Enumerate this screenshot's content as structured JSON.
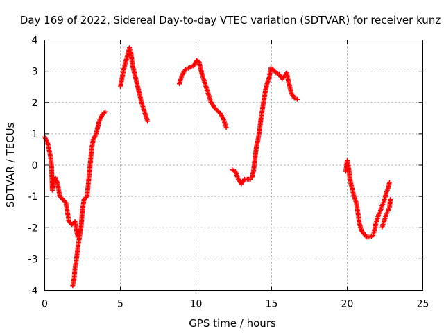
{
  "chart_data": {
    "type": "scatter",
    "title": "Day 169 of 2022, Sidereal Day-to-day VTEC variation (SDTVAR) for receiver kunz",
    "xlabel": "GPS time / hours",
    "ylabel": "SDTVAR / TECUs",
    "xlim": [
      0,
      25
    ],
    "ylim": [
      -4,
      4
    ],
    "xticks": [
      0,
      5,
      10,
      15,
      20,
      25
    ],
    "yticks": [
      -4,
      -3,
      -2,
      -1,
      0,
      1,
      2,
      3,
      4
    ],
    "grid": true,
    "marker": "+",
    "color": "#ff0000",
    "segments": [
      {
        "points": [
          [
            0.0,
            0.9
          ],
          [
            0.2,
            0.7
          ],
          [
            0.35,
            0.35
          ],
          [
            0.45,
            0.0
          ],
          [
            0.5,
            -0.8
          ],
          [
            0.6,
            -0.5
          ],
          [
            0.7,
            -0.4
          ],
          [
            0.85,
            -0.6
          ],
          [
            1.0,
            -1.0
          ],
          [
            1.2,
            -1.1
          ],
          [
            1.4,
            -1.2
          ],
          [
            1.5,
            -1.5
          ],
          [
            1.6,
            -1.8
          ],
          [
            1.8,
            -1.9
          ],
          [
            2.0,
            -1.8
          ],
          [
            2.1,
            -2.1
          ],
          [
            2.2,
            -2.3
          ],
          [
            2.4,
            -2.0
          ],
          [
            2.5,
            -1.4
          ],
          [
            2.6,
            -1.1
          ],
          [
            2.8,
            -1.0
          ],
          [
            2.9,
            -0.5
          ],
          [
            3.0,
            0.0
          ],
          [
            3.1,
            0.5
          ],
          [
            3.2,
            0.8
          ],
          [
            3.4,
            1.0
          ],
          [
            3.6,
            1.4
          ],
          [
            3.8,
            1.6
          ],
          [
            4.0,
            1.7
          ]
        ]
      },
      {
        "points": [
          [
            1.85,
            -3.85
          ],
          [
            1.95,
            -3.6
          ],
          [
            2.0,
            -3.3
          ],
          [
            2.1,
            -3.0
          ],
          [
            2.2,
            -2.6
          ],
          [
            2.3,
            -2.3
          ],
          [
            2.4,
            -2.0
          ]
        ]
      },
      {
        "points": [
          [
            5.0,
            2.5
          ],
          [
            5.2,
            3.0
          ],
          [
            5.35,
            3.3
          ],
          [
            5.5,
            3.55
          ],
          [
            5.6,
            3.75
          ],
          [
            5.7,
            3.6
          ],
          [
            5.8,
            3.2
          ],
          [
            6.0,
            2.8
          ],
          [
            6.2,
            2.4
          ],
          [
            6.4,
            2.0
          ],
          [
            6.6,
            1.7
          ],
          [
            6.8,
            1.4
          ]
        ]
      },
      {
        "points": [
          [
            8.9,
            2.6
          ],
          [
            9.1,
            2.9
          ],
          [
            9.3,
            3.05
          ],
          [
            9.5,
            3.1
          ],
          [
            9.7,
            3.15
          ],
          [
            9.9,
            3.2
          ],
          [
            10.05,
            3.35
          ],
          [
            10.2,
            3.3
          ],
          [
            10.4,
            2.9
          ],
          [
            10.6,
            2.6
          ],
          [
            10.8,
            2.3
          ],
          [
            11.0,
            2.0
          ],
          [
            11.2,
            1.85
          ],
          [
            11.4,
            1.75
          ],
          [
            11.6,
            1.65
          ],
          [
            11.8,
            1.5
          ],
          [
            12.0,
            1.2
          ]
        ]
      },
      {
        "points": [
          [
            12.4,
            -0.15
          ],
          [
            12.6,
            -0.2
          ],
          [
            12.8,
            -0.45
          ],
          [
            13.0,
            -0.6
          ],
          [
            13.2,
            -0.45
          ],
          [
            13.4,
            -0.45
          ],
          [
            13.6,
            -0.45
          ],
          [
            13.7,
            -0.4
          ],
          [
            13.8,
            -0.2
          ],
          [
            13.9,
            0.2
          ],
          [
            14.0,
            0.6
          ],
          [
            14.1,
            0.8
          ],
          [
            14.2,
            1.1
          ],
          [
            14.3,
            1.5
          ],
          [
            14.4,
            1.8
          ],
          [
            14.5,
            2.1
          ],
          [
            14.6,
            2.4
          ],
          [
            14.7,
            2.6
          ],
          [
            14.85,
            2.8
          ],
          [
            14.95,
            3.1
          ],
          [
            15.1,
            3.05
          ],
          [
            15.3,
            2.95
          ],
          [
            15.5,
            2.9
          ],
          [
            15.7,
            2.75
          ],
          [
            15.8,
            2.8
          ],
          [
            16.0,
            2.95
          ],
          [
            16.1,
            2.7
          ],
          [
            16.2,
            2.5
          ],
          [
            16.3,
            2.3
          ],
          [
            16.5,
            2.15
          ],
          [
            16.7,
            2.1
          ]
        ]
      },
      {
        "points": [
          [
            19.9,
            -0.2
          ],
          [
            20.0,
            0.15
          ],
          [
            20.1,
            -0.1
          ],
          [
            20.2,
            -0.5
          ],
          [
            20.3,
            -0.7
          ],
          [
            20.45,
            -1.0
          ],
          [
            20.6,
            -1.2
          ],
          [
            20.7,
            -1.5
          ],
          [
            20.8,
            -1.85
          ],
          [
            20.95,
            -2.1
          ],
          [
            21.1,
            -2.2
          ],
          [
            21.3,
            -2.3
          ],
          [
            21.5,
            -2.3
          ],
          [
            21.7,
            -2.25
          ],
          [
            21.8,
            -2.1
          ],
          [
            21.9,
            -1.85
          ],
          [
            22.0,
            -1.7
          ],
          [
            22.1,
            -1.55
          ],
          [
            22.2,
            -1.45
          ],
          [
            22.3,
            -1.3
          ],
          [
            22.4,
            -1.2
          ],
          [
            22.5,
            -1.05
          ],
          [
            22.6,
            -0.85
          ],
          [
            22.7,
            -0.75
          ],
          [
            22.8,
            -0.55
          ]
        ]
      },
      {
        "points": [
          [
            22.3,
            -2.0
          ],
          [
            22.4,
            -1.85
          ],
          [
            22.5,
            -1.7
          ],
          [
            22.6,
            -1.55
          ],
          [
            22.7,
            -1.45
          ],
          [
            22.8,
            -1.35
          ],
          [
            22.85,
            -1.1
          ]
        ]
      }
    ]
  }
}
